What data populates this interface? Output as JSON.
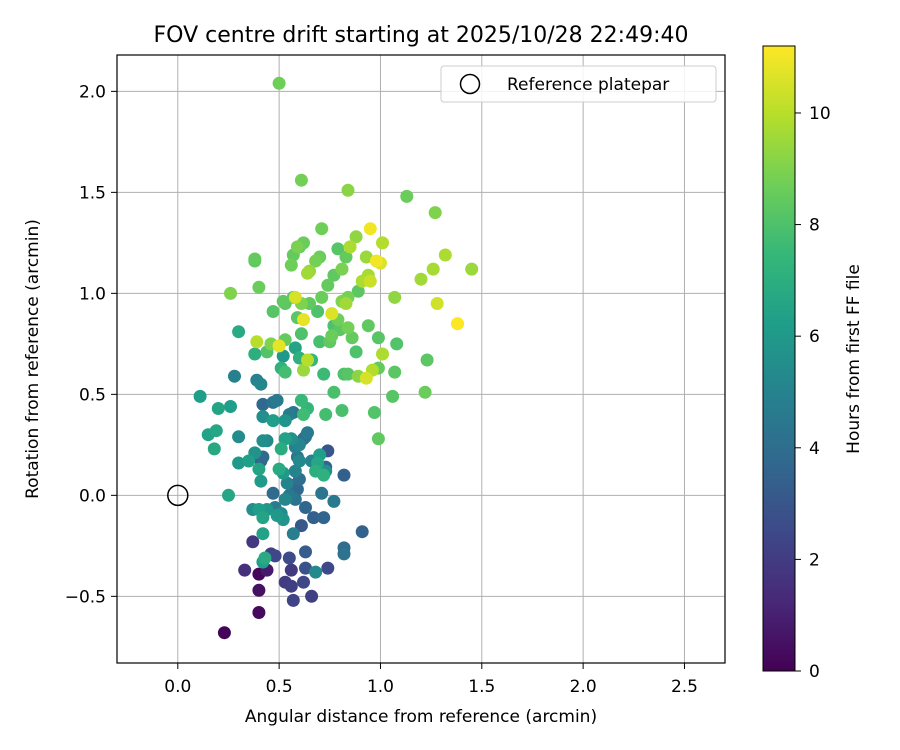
{
  "chart_data": {
    "type": "scatter",
    "title": "FOV centre drift starting at 2025/10/28 22:49:40",
    "xlabel": "Angular distance from reference (arcmin)",
    "ylabel": "Rotation from reference (arcmin)",
    "xlim": [
      -0.3,
      2.7
    ],
    "ylim": [
      -0.83,
      2.18
    ],
    "xticks": [
      0.0,
      0.5,
      1.0,
      1.5,
      2.0,
      2.5
    ],
    "xtick_labels": [
      "0.0",
      "0.5",
      "1.0",
      "1.5",
      "2.0",
      "2.5"
    ],
    "yticks": [
      -0.5,
      0.0,
      0.5,
      1.0,
      1.5,
      2.0
    ],
    "ytick_labels": [
      "−0.5",
      "0.0",
      "0.5",
      "1.0",
      "1.5",
      "2.0"
    ],
    "grid": true,
    "legend": {
      "placement": "top-right",
      "entries": [
        "Reference platepar"
      ]
    },
    "reference_point": {
      "x": 0.0,
      "y": 0.0,
      "label": "Reference platepar"
    },
    "colorbar": {
      "label": "Hours from first FF file",
      "range": [
        0,
        11.2
      ],
      "ticks": [
        0,
        2,
        4,
        6,
        8,
        10
      ],
      "tick_labels": [
        "0",
        "2",
        "4",
        "6",
        "8",
        "10"
      ],
      "colormap": [
        "#440154",
        "#482878",
        "#3e4989",
        "#31688e",
        "#26828e",
        "#1f9e89",
        "#35b779",
        "#6ece58",
        "#b5de2b",
        "#fde725"
      ]
    },
    "points": [
      [
        0.23,
        -0.68,
        0.1
      ],
      [
        0.4,
        -0.58,
        0.3
      ],
      [
        0.4,
        -0.47,
        0.5
      ],
      [
        0.4,
        -0.39,
        0.2
      ],
      [
        0.44,
        -0.37,
        0.8
      ],
      [
        0.33,
        -0.37,
        1.5
      ],
      [
        0.37,
        -0.23,
        1.8
      ],
      [
        0.46,
        -0.29,
        2.2
      ],
      [
        0.48,
        -0.3,
        2.4
      ],
      [
        0.53,
        -0.43,
        2.0
      ],
      [
        0.56,
        -0.45,
        2.1
      ],
      [
        0.57,
        -0.52,
        2.3
      ],
      [
        0.56,
        -0.37,
        1.9
      ],
      [
        0.62,
        -0.43,
        2.4
      ],
      [
        0.66,
        -0.5,
        2.2
      ],
      [
        0.55,
        -0.31,
        2.6
      ],
      [
        0.63,
        -0.36,
        2.8
      ],
      [
        0.63,
        -0.28,
        3.3
      ],
      [
        0.74,
        -0.36,
        2.5
      ],
      [
        0.91,
        -0.18,
        3.5
      ],
      [
        0.82,
        -0.26,
        4.0
      ],
      [
        0.82,
        -0.29,
        4.2
      ],
      [
        0.61,
        -0.15,
        3.1
      ],
      [
        0.67,
        -0.11,
        3.4
      ],
      [
        0.72,
        -0.11,
        3.6
      ],
      [
        0.63,
        -0.06,
        3.7
      ],
      [
        0.57,
        -0.19,
        4.8
      ],
      [
        0.68,
        -0.38,
        5.3
      ],
      [
        0.42,
        -0.19,
        6.4
      ],
      [
        0.42,
        -0.33,
        6.3
      ],
      [
        0.43,
        -0.31,
        6.8
      ],
      [
        0.37,
        -0.07,
        5.5
      ],
      [
        0.4,
        -0.07,
        6.2
      ],
      [
        0.42,
        -0.11,
        6.5
      ],
      [
        0.44,
        -0.07,
        5.9
      ],
      [
        0.49,
        -0.1,
        6.0
      ],
      [
        0.51,
        -0.09,
        5.4
      ],
      [
        0.52,
        -0.12,
        5.8
      ],
      [
        0.53,
        -0.02,
        5.2
      ],
      [
        0.48,
        -0.06,
        4.7
      ],
      [
        0.55,
        0.0,
        4.5
      ],
      [
        0.58,
        -0.02,
        4.3
      ],
      [
        0.6,
        0.08,
        4.1
      ],
      [
        0.59,
        0.03,
        3.8
      ],
      [
        0.56,
        0.05,
        3.2
      ],
      [
        0.47,
        0.01,
        3.9
      ],
      [
        0.54,
        0.06,
        5.0
      ],
      [
        0.71,
        0.01,
        4.4
      ],
      [
        0.77,
        -0.03,
        4.6
      ],
      [
        0.73,
        0.14,
        3.6
      ],
      [
        0.74,
        0.22,
        3.0
      ],
      [
        0.82,
        0.1,
        3.4
      ],
      [
        0.73,
        0.12,
        5.6
      ],
      [
        0.66,
        0.17,
        5.1
      ],
      [
        0.7,
        0.2,
        6.2
      ],
      [
        0.69,
        0.16,
        6.6
      ],
      [
        0.68,
        0.12,
        7.0
      ],
      [
        0.72,
        0.1,
        7.1
      ],
      [
        0.6,
        0.17,
        5.3
      ],
      [
        0.58,
        0.12,
        5.0
      ],
      [
        0.52,
        0.11,
        6.0
      ],
      [
        0.5,
        0.13,
        6.8
      ],
      [
        0.41,
        0.07,
        6.1
      ],
      [
        0.4,
        0.13,
        6.5
      ],
      [
        0.38,
        0.21,
        5.7
      ],
      [
        0.35,
        0.17,
        6.3
      ],
      [
        0.3,
        0.16,
        6.0
      ],
      [
        0.42,
        0.19,
        3.9
      ],
      [
        0.41,
        0.17,
        3.6
      ],
      [
        0.44,
        0.27,
        5.3
      ],
      [
        0.51,
        0.23,
        6.9
      ],
      [
        0.53,
        0.28,
        6.4
      ],
      [
        0.56,
        0.28,
        5.6
      ],
      [
        0.58,
        0.24,
        4.9
      ],
      [
        0.6,
        0.25,
        5.1
      ],
      [
        0.62,
        0.28,
        4.0
      ],
      [
        0.64,
        0.31,
        4.6
      ],
      [
        0.59,
        0.19,
        4.5
      ],
      [
        0.63,
        0.29,
        4.2
      ],
      [
        0.53,
        0.37,
        5.8
      ],
      [
        0.55,
        0.4,
        4.7
      ],
      [
        0.57,
        0.41,
        4.4
      ],
      [
        0.47,
        0.46,
        4.3
      ],
      [
        0.49,
        0.47,
        4.6
      ],
      [
        0.42,
        0.45,
        3.8
      ],
      [
        0.47,
        0.37,
        6.2
      ],
      [
        0.42,
        0.39,
        5.5
      ],
      [
        0.41,
        0.55,
        5.2
      ],
      [
        0.39,
        0.57,
        5.0
      ],
      [
        0.28,
        0.59,
        4.9
      ],
      [
        0.26,
        0.44,
        6.2
      ],
      [
        0.2,
        0.43,
        6.5
      ],
      [
        0.19,
        0.32,
        6.6
      ],
      [
        0.15,
        0.3,
        6.4
      ],
      [
        0.18,
        0.23,
        6.7
      ],
      [
        0.11,
        0.49,
        6.2
      ],
      [
        0.3,
        0.29,
        5.4
      ],
      [
        0.25,
        0.0,
        6.6
      ],
      [
        0.42,
        0.27,
        5.5
      ],
      [
        0.61,
        0.47,
        7.5
      ],
      [
        0.64,
        0.43,
        7.4
      ],
      [
        0.62,
        0.4,
        7.7
      ],
      [
        0.73,
        0.4,
        7.8
      ],
      [
        0.81,
        0.42,
        7.9
      ],
      [
        0.53,
        0.61,
        7.8
      ],
      [
        0.51,
        0.63,
        7.2
      ],
      [
        0.52,
        0.69,
        6.0
      ],
      [
        0.58,
        0.73,
        6.5
      ],
      [
        0.6,
        0.68,
        7.1
      ],
      [
        0.66,
        0.67,
        7.4
      ],
      [
        0.72,
        0.6,
        7.6
      ],
      [
        0.77,
        0.51,
        7.9
      ],
      [
        0.82,
        0.6,
        8.0
      ],
      [
        0.84,
        0.6,
        8.2
      ],
      [
        0.88,
        0.71,
        8.0
      ],
      [
        0.89,
        0.59,
        9.2
      ],
      [
        0.93,
        0.58,
        10.5
      ],
      [
        0.96,
        0.62,
        9.9
      ],
      [
        0.99,
        0.63,
        8.5
      ],
      [
        1.07,
        0.61,
        8.3
      ],
      [
        1.06,
        0.49,
        8.2
      ],
      [
        0.97,
        0.41,
        8.1
      ],
      [
        0.99,
        0.28,
        8.4
      ],
      [
        1.22,
        0.51,
        8.6
      ],
      [
        1.23,
        0.67,
        8.3
      ],
      [
        1.08,
        0.75,
        8.1
      ],
      [
        1.01,
        0.7,
        9.8
      ],
      [
        0.99,
        0.78,
        8.2
      ],
      [
        0.94,
        0.84,
        8.4
      ],
      [
        0.86,
        0.78,
        8.5
      ],
      [
        0.84,
        0.83,
        8.8
      ],
      [
        0.8,
        0.82,
        8.3
      ],
      [
        0.76,
        0.79,
        8.6
      ],
      [
        0.75,
        0.76,
        8.4
      ],
      [
        0.77,
        0.84,
        8.0
      ],
      [
        0.7,
        0.76,
        7.9
      ],
      [
        0.64,
        0.67,
        10.0
      ],
      [
        0.62,
        0.62,
        9.5
      ],
      [
        0.5,
        0.74,
        10.8
      ],
      [
        0.46,
        0.75,
        9.0
      ],
      [
        0.44,
        0.71,
        8.1
      ],
      [
        0.38,
        0.7,
        7.0
      ],
      [
        0.3,
        0.81,
        6.8
      ],
      [
        0.39,
        0.76,
        10.0
      ],
      [
        0.53,
        0.77,
        8.5
      ],
      [
        0.59,
        0.88,
        8.3
      ],
      [
        0.61,
        0.8,
        8.0
      ],
      [
        0.47,
        0.91,
        8.2
      ],
      [
        0.53,
        0.95,
        8.3
      ],
      [
        0.52,
        0.96,
        8.4
      ],
      [
        0.57,
        0.98,
        8.0
      ],
      [
        0.58,
        0.98,
        10.5
      ],
      [
        0.61,
        0.95,
        9.0
      ],
      [
        0.62,
        0.87,
        10.8
      ],
      [
        0.65,
        0.95,
        8.4
      ],
      [
        0.69,
        0.91,
        8.0
      ],
      [
        0.71,
        0.98,
        8.6
      ],
      [
        0.74,
        1.04,
        8.5
      ],
      [
        0.79,
        0.87,
        8.7
      ],
      [
        0.76,
        0.9,
        10.6
      ],
      [
        0.81,
        0.96,
        9.0
      ],
      [
        0.83,
        0.95,
        9.6
      ],
      [
        0.84,
        0.98,
        8.8
      ],
      [
        0.89,
        1.01,
        8.3
      ],
      [
        0.91,
        1.06,
        9.8
      ],
      [
        0.94,
        1.09,
        9.7
      ],
      [
        0.95,
        1.06,
        10.3
      ],
      [
        1.0,
        1.15,
        10.6
      ],
      [
        1.07,
        0.98,
        9.3
      ],
      [
        1.2,
        1.07,
        9.6
      ],
      [
        1.28,
        0.95,
        10.4
      ],
      [
        1.38,
        0.85,
        10.8
      ],
      [
        1.38,
        0.85,
        11.2
      ],
      [
        1.32,
        1.19,
        9.8
      ],
      [
        1.45,
        1.12,
        9.5
      ],
      [
        1.26,
        1.12,
        9.7
      ],
      [
        1.27,
        1.4,
        9.0
      ],
      [
        1.13,
        1.48,
        8.6
      ],
      [
        1.01,
        1.25,
        9.9
      ],
      [
        0.98,
        1.16,
        11.0
      ],
      [
        0.95,
        1.32,
        11.0
      ],
      [
        0.93,
        1.18,
        9.5
      ],
      [
        0.88,
        1.28,
        9.3
      ],
      [
        0.85,
        1.23,
        9.8
      ],
      [
        0.83,
        1.18,
        8.5
      ],
      [
        0.81,
        1.12,
        8.9
      ],
      [
        0.79,
        1.22,
        8.2
      ],
      [
        0.77,
        1.09,
        8.4
      ],
      [
        0.7,
        1.18,
        8.6
      ],
      [
        0.71,
        1.32,
        8.7
      ],
      [
        0.68,
        1.16,
        8.8
      ],
      [
        0.65,
        1.11,
        9.4
      ],
      [
        0.64,
        1.1,
        9.6
      ],
      [
        0.62,
        1.25,
        8.6
      ],
      [
        0.6,
        1.23,
        8.3
      ],
      [
        0.57,
        1.19,
        8.5
      ],
      [
        0.56,
        1.14,
        8.7
      ],
      [
        0.59,
        1.23,
        8.9
      ],
      [
        0.4,
        1.03,
        8.6
      ],
      [
        0.38,
        1.17,
        8.5
      ],
      [
        0.38,
        1.16,
        8.4
      ],
      [
        0.26,
        1.0,
        9.0
      ],
      [
        0.84,
        1.51,
        9.2
      ],
      [
        0.61,
        1.56,
        8.8
      ],
      [
        0.5,
        2.04,
        8.7
      ]
    ]
  }
}
